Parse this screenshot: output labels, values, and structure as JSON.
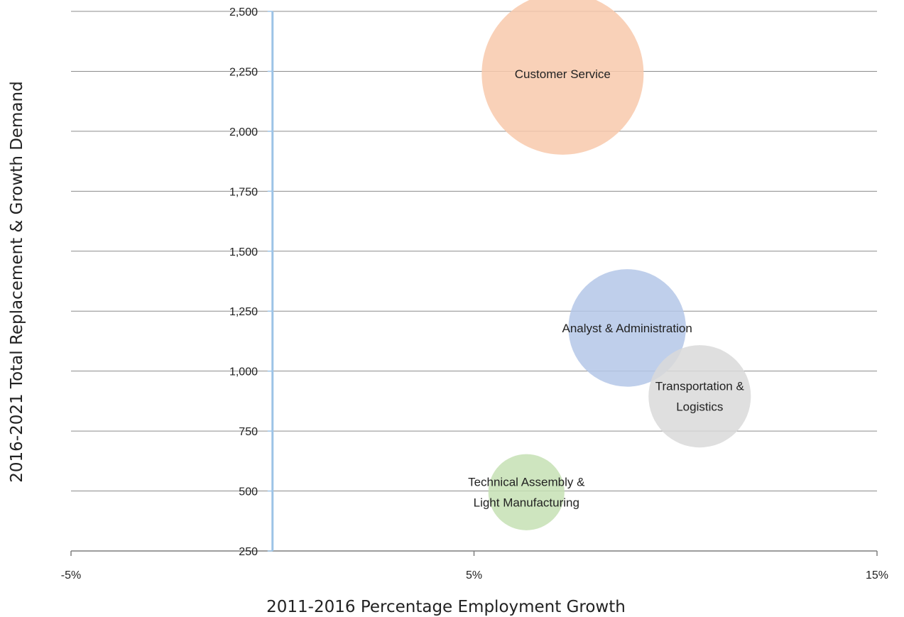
{
  "chart_data": {
    "type": "bubble",
    "title": "",
    "xlabel": "2011-2016 Percentage Employment Growth",
    "ylabel": "2016-2021 Total Replacement & Growth Demand",
    "xlim": [
      -5,
      15
    ],
    "ylim": [
      250,
      2500
    ],
    "x_ticks": [
      {
        "value": -5,
        "label": "-5%"
      },
      {
        "value": 5,
        "label": "5%"
      },
      {
        "value": 15,
        "label": "15%"
      }
    ],
    "y_ticks": [
      {
        "value": 250,
        "label": "250"
      },
      {
        "value": 500,
        "label": "500"
      },
      {
        "value": 750,
        "label": "750"
      },
      {
        "value": 1000,
        "label": "1,000"
      },
      {
        "value": 1250,
        "label": "1,250"
      },
      {
        "value": 1500,
        "label": "1,500"
      },
      {
        "value": 1750,
        "label": "1,750"
      },
      {
        "value": 2000,
        "label": "2,000"
      },
      {
        "value": 2250,
        "label": "2,250"
      },
      {
        "value": 2500,
        "label": "2,500"
      }
    ],
    "grid": "horizontal",
    "vertical_axis_at_x": 0,
    "bubbles": [
      {
        "name": "Customer Service",
        "label_lines": [
          "Customer Service"
        ],
        "x": 7.2,
        "y": 2240,
        "size": 2240,
        "color": "#F8C9AB"
      },
      {
        "name": "Analyst & Administration",
        "label_lines": [
          "Analyst & Administration"
        ],
        "x": 8.8,
        "y": 1180,
        "size": 1180,
        "color": "#B4C7E7"
      },
      {
        "name": "Transportation & Logistics",
        "label_lines": [
          "Transportation &",
          "Logistics"
        ],
        "x": 10.6,
        "y": 895,
        "size": 895,
        "color": "#D9D9D9"
      },
      {
        "name": "Technical Assembly & Light Manufacturing",
        "label_lines": [
          "Technical Assembly &",
          "Light Manufacturing"
        ],
        "x": 6.3,
        "y": 495,
        "size": 495,
        "color": "#C5E0B4"
      }
    ]
  }
}
